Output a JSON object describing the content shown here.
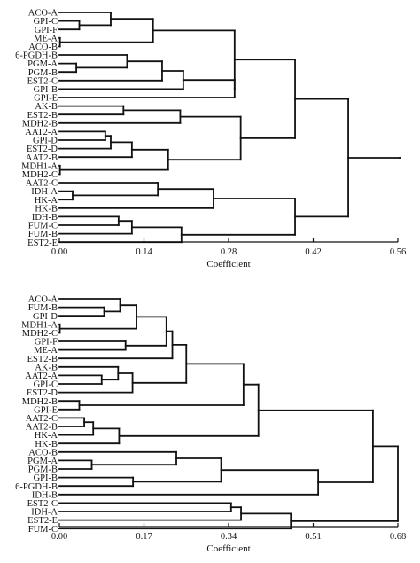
{
  "chart_data": [
    {
      "type": "dendrogram",
      "xlabel": "Coefficient",
      "xlim": [
        0,
        0.56
      ],
      "ticks": [
        "0.00",
        "0.14",
        "0.28",
        "0.42",
        "0.56"
      ],
      "ticks_values": [
        0,
        0.14,
        0.28,
        0.42,
        0.56
      ],
      "leaves": [
        "ACO-A",
        "GPI-C",
        "GPI-F",
        "ME-A",
        "ACO-B",
        "6-PGDH-B",
        "PGM-A",
        "PGM-B",
        "EST2-C",
        "GPI-B",
        "GPI-E",
        "AK-B",
        "EST2-B",
        "MDH2-B",
        "AAT2-A",
        "GPI-D",
        "EST2-D",
        "AAT2-B",
        "MDH1-A",
        "MDH2-C",
        "AAT2-C",
        "IDH-A",
        "HK-A",
        "HK-B",
        "IDH-B",
        "FUM-C",
        "FUM-B",
        "EST2-E"
      ],
      "tree": {
        "h": 0.563,
        "c": [
          {
            "h": 0.478,
            "c": [
              {
                "h": 0.39,
                "c": [
                  {
                    "h": 0.29,
                    "c": [
                      {
                        "h": 0.155,
                        "c": [
                          {
                            "h": 0.085,
                            "c": [
                              "ACO-A",
                              {
                                "h": 0.033,
                                "c": [
                                  "GPI-C",
                                  "GPI-F"
                                ]
                              }
                            ]
                          },
                          {
                            "h": 0.001,
                            "c": [
                              "ME-A",
                              "ACO-B"
                            ]
                          }
                        ]
                      },
                      {
                        "h": 0.29,
                        "c": [
                          {
                            "h": 0.205,
                            "c": [
                              {
                                "h": 0.17,
                                "c": [
                                  {
                                    "h": 0.112,
                                    "c": [
                                      "6-PGDH-B",
                                      {
                                        "h": 0.028,
                                        "c": [
                                          "PGM-A",
                                          "PGM-B"
                                        ]
                                      }
                                    ]
                                  },
                                  "EST2-C"
                                ]
                              },
                              "GPI-B"
                            ]
                          },
                          "GPI-E"
                        ]
                      }
                    ]
                  },
                  {
                    "h": 0.3,
                    "c": [
                      {
                        "h": 0.2,
                        "c": [
                          {
                            "h": 0.106,
                            "c": [
                              "AK-B",
                              "EST2-B"
                            ]
                          },
                          "MDH2-B"
                        ]
                      },
                      {
                        "h": 0.18,
                        "c": [
                          {
                            "h": 0.12,
                            "c": [
                              {
                                "h": 0.085,
                                "c": [
                                  {
                                    "h": 0.076,
                                    "c": [
                                      "AAT2-A",
                                      "GPI-D"
                                    ]
                                  },
                                  "EST2-D"
                                ]
                              },
                              "AAT2-B"
                            ]
                          },
                          {
                            "h": 0.001,
                            "c": [
                              "MDH1-A",
                              "MDH2-C"
                            ]
                          }
                        ]
                      }
                    ]
                  }
                ]
              },
              {
                "h": 0.39,
                "c": [
                  {
                    "h": 0.255,
                    "c": [
                      {
                        "h": 0.163,
                        "c": [
                          "AAT2-C",
                          {
                            "h": 0.022,
                            "c": [
                              "IDH-A",
                              "HK-A"
                            ]
                          }
                        ]
                      },
                      "HK-B"
                    ]
                  },
                  {
                    "h": 0.202,
                    "c": [
                      {
                        "h": 0.12,
                        "c": [
                          {
                            "h": 0.098,
                            "c": [
                              "IDH-B",
                              "FUM-C"
                            ]
                          },
                          "FUM-B"
                        ]
                      },
                      "EST2-E"
                    ]
                  }
                ]
              }
            ]
          }
        ]
      }
    },
    {
      "type": "dendrogram",
      "xlabel": "Coefficient",
      "xlim": [
        0,
        0.68
      ],
      "ticks": [
        "0.00",
        "0.17",
        "0.34",
        "0.51",
        "0.68"
      ],
      "ticks_values": [
        0,
        0.17,
        0.34,
        0.51,
        0.68
      ],
      "leaves": [
        "ACO-A",
        "FUM-B",
        "GPI-D",
        "MDH1-A",
        "MDH2-C",
        "GPI-F",
        "ME-A",
        "EST2-B",
        "AK-B",
        "AAT2-A",
        "GPI-C",
        "EST2-D",
        "MDH2-B",
        "GPI-E",
        "AAT2-C",
        "AAT2-B",
        "HK-A",
        "HK-B",
        "ACO-B",
        "PGM-A",
        "PGM-B",
        "GPI-B",
        "6-PGDH-B",
        "IDH-B",
        "EST2-C",
        "IDH-A",
        "EST2-E",
        "FUM-C"
      ],
      "tree": {
        "h": 0.68,
        "c": [
          {
            "h": 0.63,
            "c": [
              {
                "h": 0.4,
                "c": [
                  {
                    "h": 0.37,
                    "c": [
                      {
                        "h": 0.255,
                        "c": [
                          {
                            "h": 0.227,
                            "c": [
                              {
                                "h": 0.215,
                                "c": [
                                  {
                                    "h": 0.155,
                                    "c": [
                                      {
                                        "h": 0.122,
                                        "c": [
                                          "ACO-A",
                                          {
                                            "h": 0.09,
                                            "c": [
                                              "FUM-B",
                                              "GPI-D"
                                            ]
                                          }
                                        ]
                                      },
                                      {
                                        "h": 0.001,
                                        "c": [
                                          "MDH1-A",
                                          "MDH2-C"
                                        ]
                                      }
                                    ]
                                  },
                                  {
                                    "h": 0.133,
                                    "c": [
                                      "GPI-F",
                                      "ME-A"
                                    ]
                                  }
                                ]
                              },
                              "EST2-B"
                            ]
                          },
                          {
                            "h": 0.147,
                            "c": [
                              {
                                "h": 0.118,
                                "c": [
                                  "AK-B",
                                  {
                                    "h": 0.085,
                                    "c": [
                                      "AAT2-A",
                                      "GPI-C"
                                    ]
                                  }
                                ]
                              },
                              "EST2-D"
                            ]
                          }
                        ]
                      },
                      {
                        "h": 0.04,
                        "c": [
                          "MDH2-B",
                          "GPI-E"
                        ]
                      }
                    ]
                  },
                  {
                    "h": 0.12,
                    "c": [
                      {
                        "h": 0.068,
                        "c": [
                          {
                            "h": 0.05,
                            "c": [
                              "AAT2-C",
                              "AAT2-B"
                            ]
                          },
                          "HK-A"
                        ]
                      },
                      "HK-B"
                    ]
                  }
                ]
              },
              {
                "h": 0.52,
                "c": [
                  {
                    "h": 0.325,
                    "c": [
                      {
                        "h": 0.235,
                        "c": [
                          "ACO-B",
                          {
                            "h": 0.065,
                            "c": [
                              "PGM-A",
                              "PGM-B"
                            ]
                          }
                        ]
                      },
                      {
                        "h": 0.148,
                        "c": [
                          "GPI-B",
                          "6-PGDH-B"
                        ]
                      }
                    ]
                  },
                  "IDH-B"
                ]
              }
            ]
          },
          {
            "h": 0.465,
            "c": [
              {
                "h": 0.365,
                "c": [
                  {
                    "h": 0.345,
                    "c": [
                      "EST2-C",
                      "IDH-A"
                    ]
                  },
                  "EST2-E"
                ]
              },
              "FUM-C"
            ]
          }
        ]
      }
    }
  ]
}
